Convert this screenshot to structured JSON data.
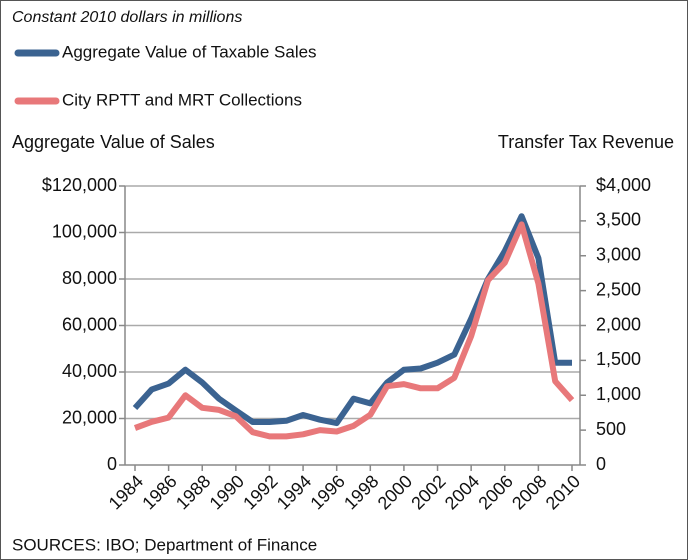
{
  "chart_data": {
    "type": "line",
    "subtitle": "Constant 2010 dollars in millions",
    "y_label": "Aggregate Value of Sales",
    "y2_label": "Transfer Tax Revenue",
    "source": "SOURCES: IBO; Department of Finance",
    "x": [
      1984,
      1985,
      1986,
      1987,
      1988,
      1989,
      1990,
      1991,
      1992,
      1993,
      1994,
      1995,
      1996,
      1997,
      1998,
      1999,
      2000,
      2001,
      2002,
      2003,
      2004,
      2005,
      2006,
      2007,
      2008,
      2009,
      2010
    ],
    "xlim": [
      1984,
      2010
    ],
    "xticks": [
      1984,
      1986,
      1988,
      1990,
      1992,
      1994,
      1996,
      1998,
      2000,
      2002,
      2004,
      2006,
      2008,
      2010
    ],
    "ylim": [
      0,
      120000
    ],
    "yticks": [
      0,
      {
        "value": 20000,
        "label": "20,000"
      },
      {
        "value": 40000,
        "label": "40,000"
      },
      {
        "value": 60000,
        "label": "60,000"
      },
      {
        "value": 80000,
        "label": "80,000"
      },
      {
        "value": 100000,
        "label": "100,000"
      },
      {
        "value": 120000,
        "label": "$120,000"
      }
    ],
    "y2lim": [
      0,
      4000
    ],
    "y2ticks": [
      0,
      500,
      {
        "value": 1000,
        "label": "1,000"
      },
      {
        "value": 1500,
        "label": "1,500"
      },
      {
        "value": 2000,
        "label": "2,000"
      },
      {
        "value": 2500,
        "label": "2,500"
      },
      {
        "value": 3000,
        "label": "3,000"
      },
      {
        "value": 3500,
        "label": "3,500"
      },
      {
        "value": 4000,
        "label": "$4,000"
      }
    ],
    "grid": true,
    "series": [
      {
        "name": "Aggregate Value of Taxable Sales",
        "color": "#3b6391",
        "values": [
          24500,
          32500,
          35000,
          41000,
          35500,
          28500,
          23500,
          18500,
          18500,
          19000,
          21500,
          19500,
          18000,
          28500,
          26500,
          35500,
          41000,
          41500,
          44000,
          47500,
          63000,
          80000,
          92000,
          107000,
          89000,
          44000,
          44000
        ]
      },
      {
        "name": "City RPTT and MRT Collections",
        "color": "#e8787a",
        "axis": "y2",
        "values": [
          530,
          620,
          680,
          1000,
          820,
          790,
          700,
          470,
          410,
          410,
          440,
          500,
          480,
          560,
          720,
          1130,
          1160,
          1100,
          1100,
          1250,
          1850,
          2650,
          2900,
          3450,
          2600,
          1200,
          930
        ]
      }
    ]
  }
}
